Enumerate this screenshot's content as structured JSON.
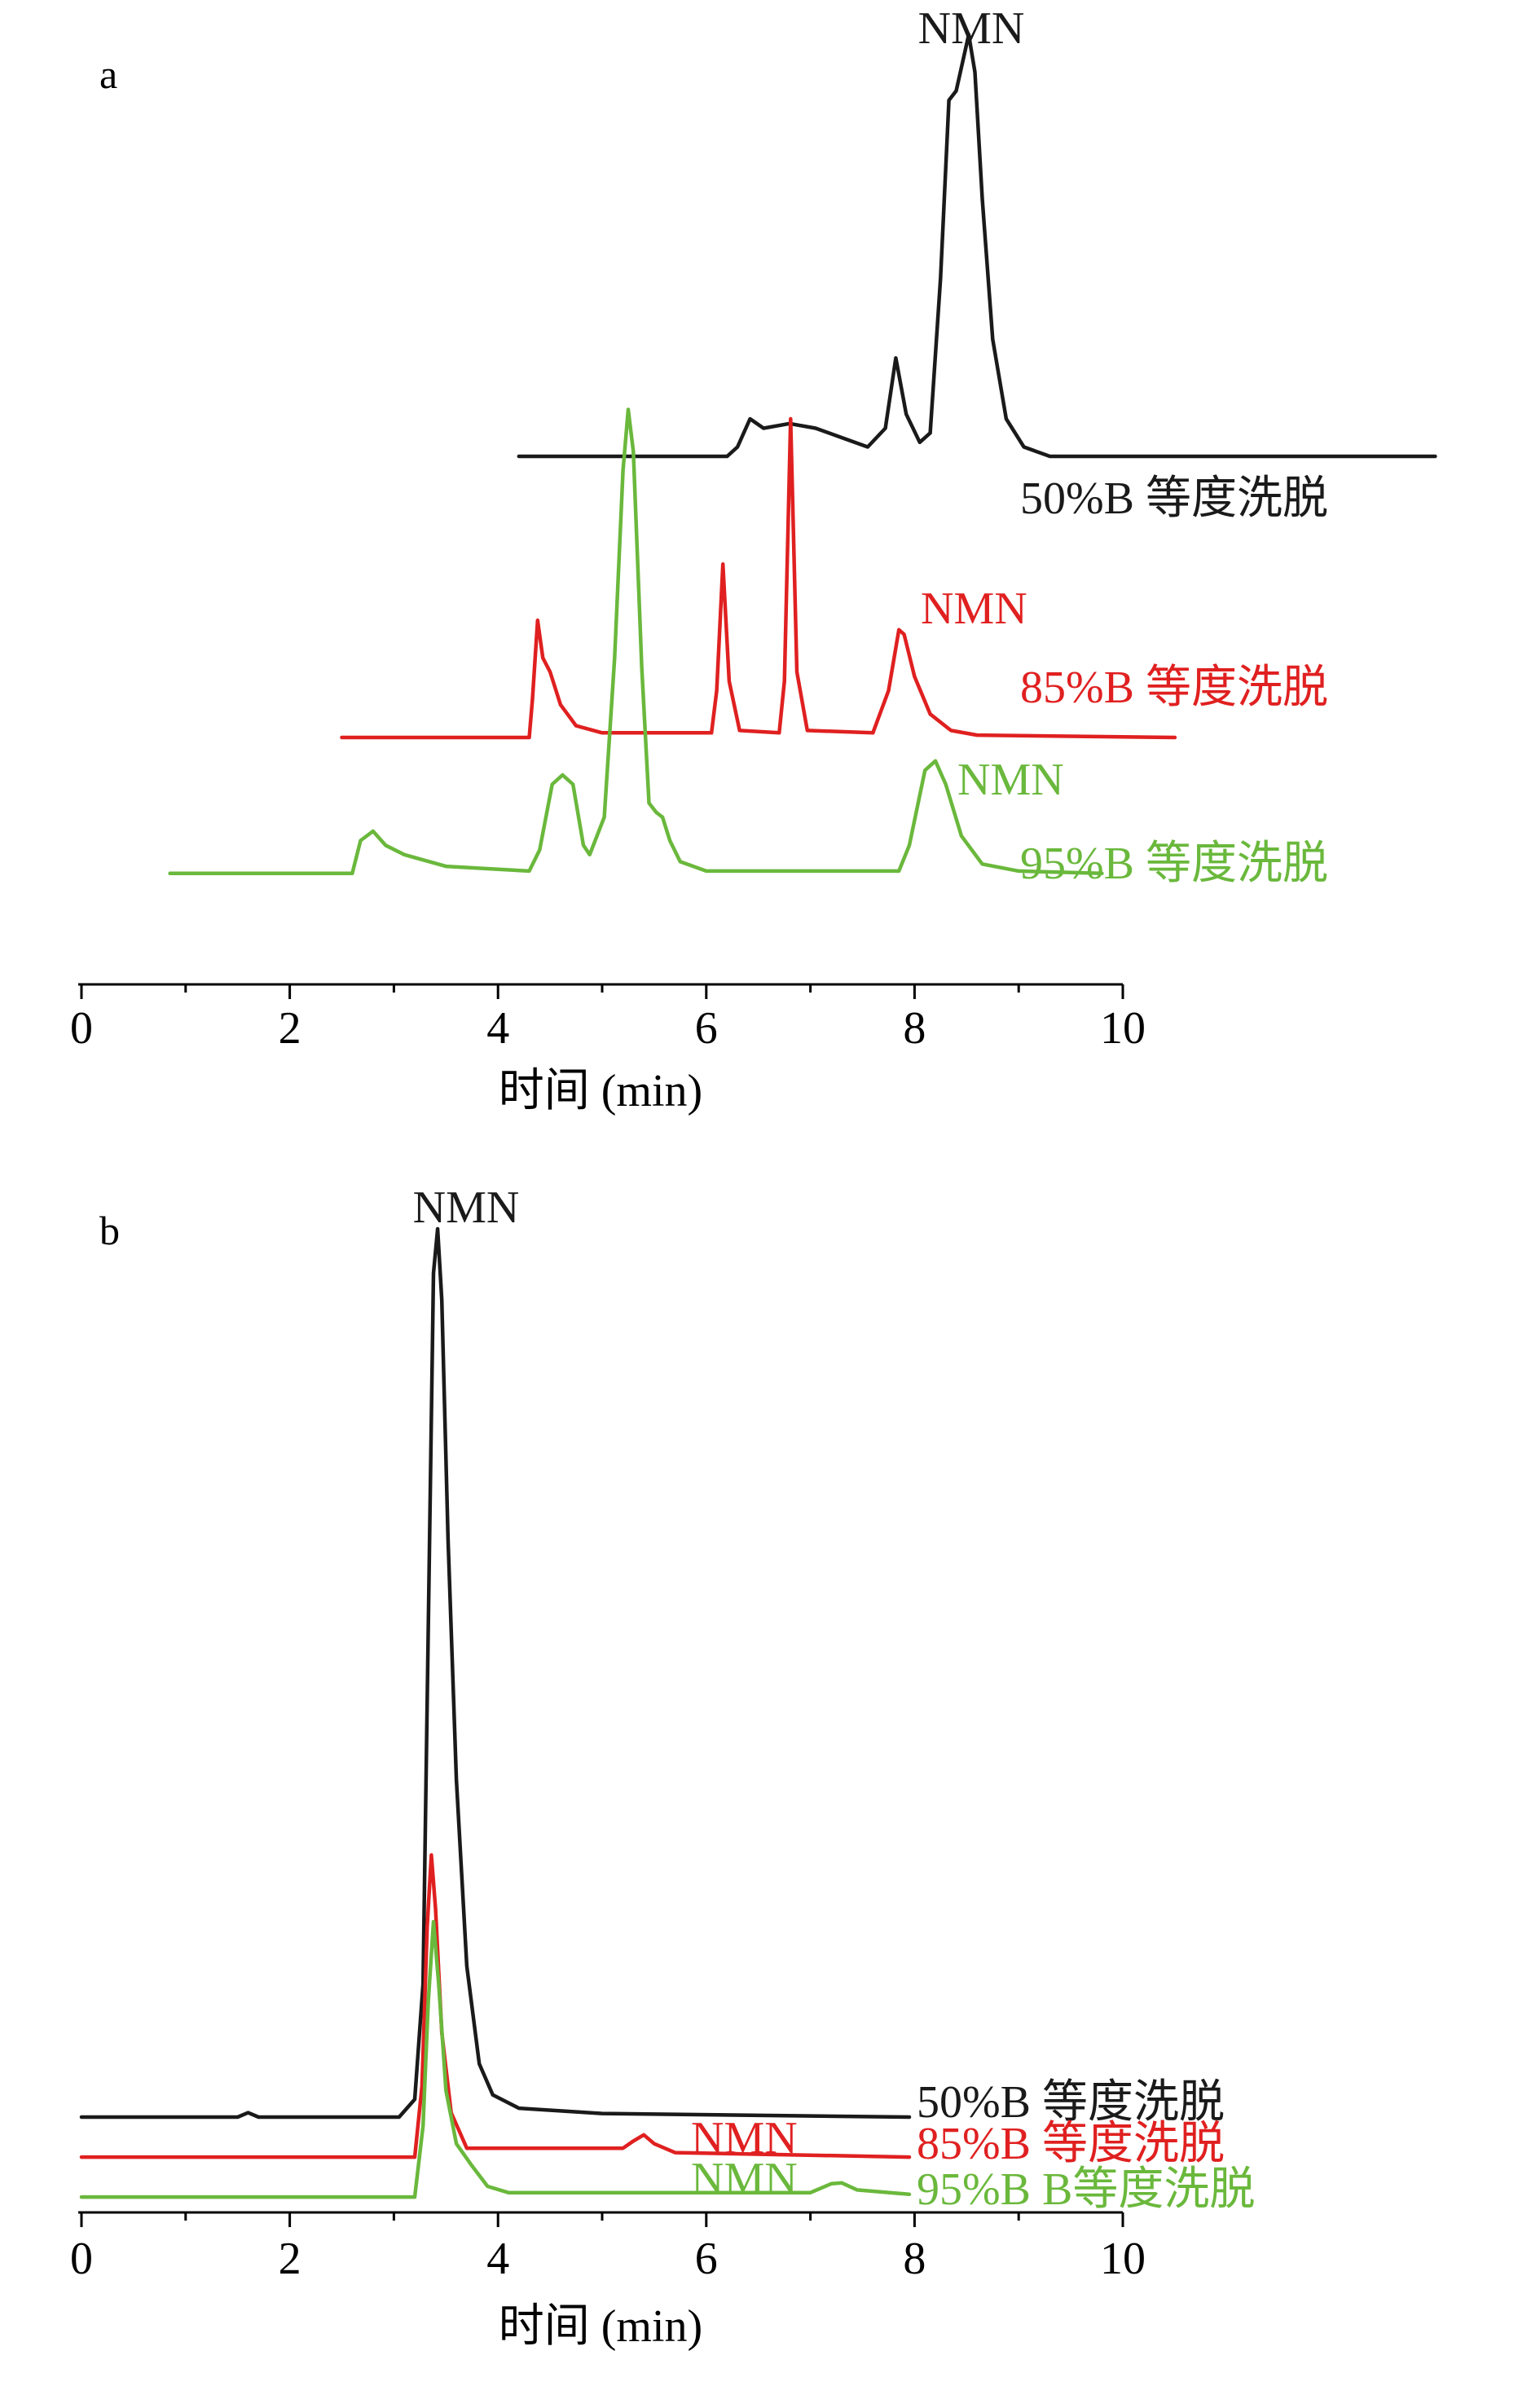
{
  "colors": {
    "black": "#1a1a1a",
    "red": "#e02020",
    "green": "#6ab83c",
    "axis": "#000000"
  },
  "chart_data": [
    {
      "type": "line",
      "panel_label": "a",
      "xlabel": "时间 (min)",
      "xlim": [
        0,
        10
      ],
      "x_ticks": [
        "0",
        "2",
        "4",
        "6",
        "8",
        "10"
      ],
      "y_axis_visible": false,
      "grid": false,
      "series": [
        {
          "name": "50%B 等度洗脱",
          "color": "#1a1a1a",
          "baseline": 0.6,
          "x_start": 4.2,
          "x_end": 13.0,
          "points": [
            [
              4.2,
              0
            ],
            [
              6.2,
              0
            ],
            [
              6.3,
              0.02
            ],
            [
              6.42,
              0.08
            ],
            [
              6.55,
              0.06
            ],
            [
              6.8,
              0.07
            ],
            [
              7.05,
              0.06
            ],
            [
              7.3,
              0.04
            ],
            [
              7.55,
              0.02
            ],
            [
              7.72,
              0.06
            ],
            [
              7.82,
              0.21
            ],
            [
              7.92,
              0.09
            ],
            [
              8.05,
              0.03
            ],
            [
              8.15,
              0.05
            ],
            [
              8.25,
              0.38
            ],
            [
              8.33,
              0.76
            ],
            [
              8.4,
              0.78
            ],
            [
              8.46,
              0.84
            ],
            [
              8.52,
              0.9
            ],
            [
              8.58,
              0.82
            ],
            [
              8.65,
              0.55
            ],
            [
              8.75,
              0.25
            ],
            [
              8.88,
              0.08
            ],
            [
              9.05,
              0.02
            ],
            [
              9.3,
              0
            ],
            [
              13.0,
              0
            ]
          ],
          "peak_label": "NMN"
        },
        {
          "name": "85%B 等度洗脱",
          "color": "#e02020",
          "baseline": 0.0,
          "x_start": 2.5,
          "x_end": 10.5,
          "points": [
            [
              2.5,
              0
            ],
            [
              4.3,
              0
            ],
            [
              4.33,
              0.08
            ],
            [
              4.38,
              0.25
            ],
            [
              4.43,
              0.17
            ],
            [
              4.5,
              0.14
            ],
            [
              4.6,
              0.07
            ],
            [
              4.75,
              0.025
            ],
            [
              5.0,
              0.01
            ],
            [
              6.05,
              0.01
            ],
            [
              6.1,
              0.1
            ],
            [
              6.16,
              0.37
            ],
            [
              6.22,
              0.12
            ],
            [
              6.32,
              0.015
            ],
            [
              6.7,
              0.01
            ],
            [
              6.75,
              0.12
            ],
            [
              6.81,
              0.68
            ],
            [
              6.87,
              0.14
            ],
            [
              6.97,
              0.015
            ],
            [
              7.6,
              0.01
            ],
            [
              7.75,
              0.1
            ],
            [
              7.85,
              0.23
            ],
            [
              7.9,
              0.22
            ],
            [
              8.0,
              0.13
            ],
            [
              8.15,
              0.05
            ],
            [
              8.35,
              0.015
            ],
            [
              8.6,
              0.005
            ],
            [
              10.5,
              0
            ]
          ],
          "peak_label": "NMN"
        },
        {
          "name": "95%B 等度洗脱",
          "color": "#6ab83c",
          "baseline": -0.29,
          "x_start": 0.85,
          "x_end": 9.8,
          "points": [
            [
              0.85,
              0
            ],
            [
              2.6,
              0
            ],
            [
              2.68,
              0.07
            ],
            [
              2.8,
              0.09
            ],
            [
              2.92,
              0.06
            ],
            [
              3.1,
              0.04
            ],
            [
              3.5,
              0.015
            ],
            [
              4.3,
              0.005
            ],
            [
              4.4,
              0.05
            ],
            [
              4.52,
              0.19
            ],
            [
              4.62,
              0.21
            ],
            [
              4.72,
              0.19
            ],
            [
              4.82,
              0.06
            ],
            [
              4.88,
              0.04
            ],
            [
              5.02,
              0.12
            ],
            [
              5.12,
              0.46
            ],
            [
              5.2,
              0.86
            ],
            [
              5.25,
              0.99
            ],
            [
              5.3,
              0.9
            ],
            [
              5.38,
              0.44
            ],
            [
              5.45,
              0.15
            ],
            [
              5.52,
              0.13
            ],
            [
              5.58,
              0.12
            ],
            [
              5.65,
              0.07
            ],
            [
              5.75,
              0.025
            ],
            [
              6.0,
              0.005
            ],
            [
              7.85,
              0.005
            ],
            [
              7.95,
              0.06
            ],
            [
              8.1,
              0.22
            ],
            [
              8.2,
              0.24
            ],
            [
              8.3,
              0.19
            ],
            [
              8.45,
              0.08
            ],
            [
              8.65,
              0.02
            ],
            [
              9.0,
              0.005
            ],
            [
              9.8,
              0
            ]
          ],
          "peak_label": "NMN"
        }
      ]
    },
    {
      "type": "line",
      "panel_label": "b",
      "xlabel": "时间 (min)",
      "xlim": [
        0,
        10
      ],
      "x_ticks": [
        "0",
        "2",
        "4",
        "6",
        "8",
        "10"
      ],
      "y_axis_visible": false,
      "grid": false,
      "series": [
        {
          "name": "50%B 等度洗脱",
          "color": "#1a1a1a",
          "baseline": 0.0,
          "x_start": 0.0,
          "x_end": 7.95,
          "points": [
            [
              0,
              0
            ],
            [
              1.5,
              0
            ],
            [
              1.6,
              0.005
            ],
            [
              1.7,
              0
            ],
            [
              3.05,
              0
            ],
            [
              3.2,
              0.02
            ],
            [
              3.28,
              0.15
            ],
            [
              3.33,
              0.55
            ],
            [
              3.38,
              0.95
            ],
            [
              3.42,
              1.0
            ],
            [
              3.46,
              0.92
            ],
            [
              3.52,
              0.65
            ],
            [
              3.6,
              0.38
            ],
            [
              3.7,
              0.17
            ],
            [
              3.82,
              0.06
            ],
            [
              3.95,
              0.025
            ],
            [
              4.2,
              0.01
            ],
            [
              5.0,
              0.004
            ],
            [
              7.95,
              0
            ]
          ],
          "peak_label": "NMN"
        },
        {
          "name": "85%B 等度洗脱",
          "color": "#e02020",
          "baseline": -0.045,
          "x_start": 0.0,
          "x_end": 7.95,
          "points": [
            [
              0,
              0
            ],
            [
              3.2,
              0
            ],
            [
              3.27,
              0.08
            ],
            [
              3.32,
              0.26
            ],
            [
              3.36,
              0.34
            ],
            [
              3.4,
              0.28
            ],
            [
              3.46,
              0.14
            ],
            [
              3.55,
              0.05
            ],
            [
              3.7,
              0.01
            ],
            [
              5.2,
              0.01
            ],
            [
              5.3,
              0.018
            ],
            [
              5.4,
              0.025
            ],
            [
              5.5,
              0.015
            ],
            [
              5.7,
              0.005
            ],
            [
              7.95,
              0
            ]
          ],
          "peak_label": "NMN"
        },
        {
          "name": "95%B B等度洗脱",
          "color": "#6ab83c",
          "baseline": -0.09,
          "x_start": 0.0,
          "x_end": 7.95,
          "points": [
            [
              0,
              0
            ],
            [
              3.2,
              0
            ],
            [
              3.28,
              0.08
            ],
            [
              3.33,
              0.22
            ],
            [
              3.38,
              0.31
            ],
            [
              3.43,
              0.24
            ],
            [
              3.5,
              0.12
            ],
            [
              3.6,
              0.06
            ],
            [
              3.75,
              0.035
            ],
            [
              3.9,
              0.012
            ],
            [
              4.1,
              0.005
            ],
            [
              7.0,
              0.005
            ],
            [
              7.2,
              0.015
            ],
            [
              7.3,
              0.016
            ],
            [
              7.45,
              0.008
            ],
            [
              7.95,
              0.003
            ]
          ],
          "peak_label": "NMN"
        }
      ]
    }
  ]
}
